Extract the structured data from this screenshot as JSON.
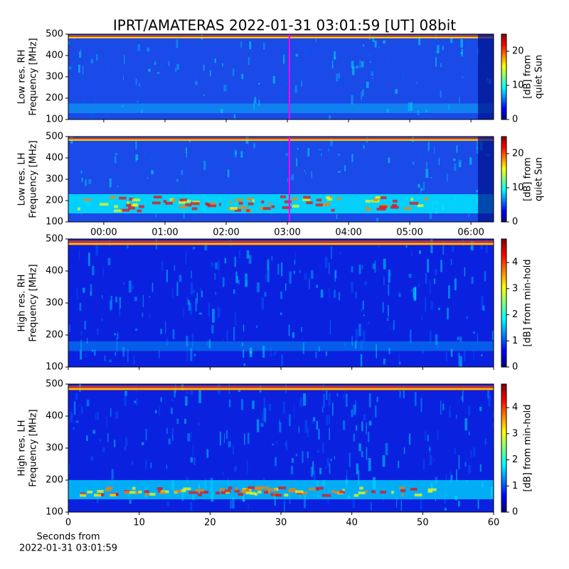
{
  "chart_data": [
    {
      "type": "heatmap",
      "title": "IPRT/AMATERAS 2022-01-31 03:01:59 [UT]   08bit",
      "ylabel": [
        "Low res. RH",
        "Frequency [MHz]"
      ],
      "ylim": [
        100,
        500
      ],
      "yticks": [
        100,
        200,
        300,
        400,
        500
      ],
      "xlim": [
        -0.58,
        6.37
      ],
      "xticks": [
        0,
        1,
        2,
        3,
        4,
        5,
        6
      ],
      "xtick_labels": false,
      "marker_x": 3.033,
      "marker_color": "#ff00ff",
      "colormap": "jet",
      "clim": [
        0,
        25
      ],
      "cticks": [
        0,
        10,
        20
      ],
      "clabel": [
        "[dB] from",
        "quiet Sun"
      ]
    },
    {
      "type": "heatmap",
      "ylabel": [
        "Low res. LH",
        "Frequency [MHz]"
      ],
      "ylim": [
        100,
        500
      ],
      "yticks": [
        100,
        200,
        300,
        400,
        500
      ],
      "xlim": [
        -0.58,
        6.37
      ],
      "xticks": [
        {
          "value": 0,
          "label": "00:00"
        },
        {
          "value": 1,
          "label": "01:00"
        },
        {
          "value": 2,
          "label": "02:00"
        },
        {
          "value": 3,
          "label": "03:00"
        },
        {
          "value": 4,
          "label": "04:00"
        },
        {
          "value": 5,
          "label": "05:00"
        },
        {
          "value": 6,
          "label": "06:00"
        }
      ],
      "marker_x": 3.033,
      "marker_color": "#ff00ff",
      "colormap": "jet",
      "clim": [
        0,
        25
      ],
      "cticks": [
        0,
        10,
        20
      ],
      "clabel": [
        "[dB] from",
        "quiet Sun"
      ]
    },
    {
      "type": "heatmap",
      "ylabel": [
        "High res. RH",
        "Frequency [MHz]"
      ],
      "ylim": [
        100,
        500
      ],
      "yticks": [
        100,
        200,
        300,
        400,
        500
      ],
      "xlim": [
        0,
        60
      ],
      "xticks": [
        0,
        10,
        20,
        30,
        40,
        50,
        60
      ],
      "xtick_labels": false,
      "colormap": "jet",
      "clim": [
        0,
        4.9
      ],
      "cticks": [
        0,
        1,
        2,
        3,
        4
      ],
      "clabel": [
        "[dB] from min-hold"
      ]
    },
    {
      "type": "heatmap",
      "ylabel": [
        "High res. LH",
        "Frequency [MHz]"
      ],
      "ylim": [
        100,
        500
      ],
      "yticks": [
        100,
        200,
        300,
        400,
        500
      ],
      "xlim": [
        0,
        60
      ],
      "xticks": [
        0,
        10,
        20,
        30,
        40,
        50,
        60
      ],
      "xlabel": [
        "Seconds from",
        "2022-01-31 03:01:59"
      ],
      "colormap": "jet",
      "clim": [
        0,
        4.9
      ],
      "cticks": [
        0,
        1,
        2,
        3,
        4
      ],
      "clabel": [
        "[dB] from min-hold"
      ]
    }
  ]
}
